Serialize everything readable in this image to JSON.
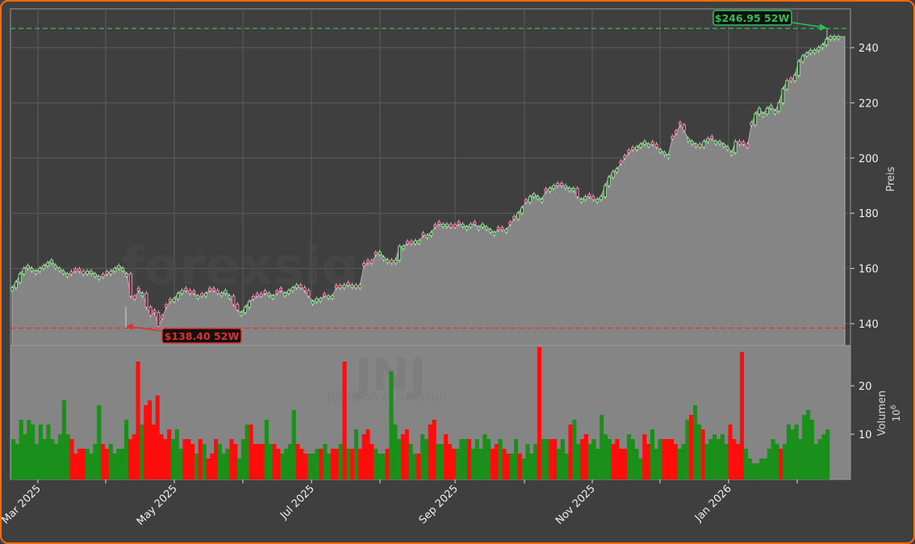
{
  "chart_data": {
    "type": "candlestick",
    "ticker": "JNJ",
    "company": "Johnson & Johnson",
    "watermark": "forexsignale.trade",
    "ylabel_price": "Preis",
    "ylabel_volume": "Volumen",
    "volume_unit": "10^6",
    "price_ticks": [
      140,
      160,
      180,
      200,
      220,
      240
    ],
    "volume_ticks": [
      10,
      20
    ],
    "price_ylim": [
      132.5,
      254.5
    ],
    "volume_ylim": [
      2.7,
      28.5
    ],
    "x_ticks": [
      "Mar 2025",
      "May 2025",
      "Jul 2025",
      "Sep 2025",
      "Nov 2025",
      "Jan 2026"
    ],
    "high_52w": {
      "value": 246.95,
      "label": "$246.95 52W",
      "color": "#2fbf5a"
    },
    "low_52w": {
      "value": 138.4,
      "label": "$138.40 52W",
      "color": "#e03030"
    },
    "grid": true,
    "colors": {
      "up": "#1a8f1a",
      "down": "#ff0d0d",
      "candle_up": "#7fe07f",
      "candle_down": "#ff7fa8",
      "area": "#858585",
      "background": "#3f3f3f"
    },
    "close_series": [
      153,
      155,
      158,
      160,
      161,
      160,
      159,
      160,
      161,
      162,
      163,
      161,
      160,
      159,
      158,
      158,
      159,
      159,
      158,
      159,
      159,
      158,
      157,
      157,
      158,
      159,
      160,
      161,
      160,
      158,
      150,
      149,
      152,
      151,
      146,
      143,
      144,
      139,
      142,
      146,
      148,
      149,
      151,
      152,
      152,
      151,
      151,
      150,
      150,
      151,
      152,
      152,
      151,
      151,
      152,
      150,
      147,
      145,
      144,
      146,
      148,
      149,
      150,
      150,
      151,
      151,
      150,
      151,
      152,
      151,
      152,
      153,
      154,
      153,
      152,
      150,
      148,
      149,
      149,
      150,
      150,
      150,
      153,
      153,
      154,
      154,
      154,
      153,
      154,
      161,
      162,
      162,
      165,
      166,
      164,
      163,
      162,
      163,
      168,
      168,
      169,
      169,
      170,
      170,
      172,
      172,
      173,
      175,
      176,
      176,
      176,
      175,
      175,
      176,
      176,
      175,
      176,
      176,
      175,
      176,
      175,
      174,
      173,
      174,
      174,
      174,
      176,
      178,
      180,
      182,
      184,
      186,
      187,
      186,
      185,
      188,
      189,
      190,
      190,
      190,
      190,
      189,
      189,
      186,
      185,
      186,
      186,
      185,
      185,
      186,
      190,
      193,
      195,
      196,
      198,
      200,
      202,
      203,
      204,
      205,
      206,
      205,
      205,
      204,
      203,
      202,
      201,
      207,
      209,
      212,
      210,
      207,
      206,
      205,
      204,
      206,
      207,
      207,
      206,
      206,
      205,
      204,
      202,
      206,
      205,
      205,
      204,
      212,
      216,
      218,
      216,
      218,
      219,
      217,
      220,
      225,
      228,
      228,
      230,
      235,
      237,
      238,
      239,
      239,
      240,
      241,
      243,
      244,
      244,
      244
    ],
    "volume_series": [
      9,
      8,
      13,
      10,
      13,
      12,
      8,
      12,
      9,
      12,
      9,
      8,
      10,
      17,
      10,
      9,
      6,
      7,
      7,
      7,
      6,
      8,
      16,
      8,
      7,
      8,
      6,
      7,
      7,
      13,
      9,
      10,
      25,
      12,
      16,
      17,
      12,
      18,
      10,
      9,
      11,
      9,
      11,
      7,
      9,
      9,
      8,
      6,
      9,
      8,
      5,
      6,
      9,
      8,
      6,
      7,
      9,
      8,
      5,
      9,
      12,
      12,
      8,
      8,
      8,
      13,
      8,
      8,
      7,
      6,
      7,
      8,
      15,
      8,
      7,
      6,
      6,
      6,
      7,
      7,
      8,
      6,
      7,
      7,
      8,
      25,
      7,
      7,
      11,
      7,
      10,
      11,
      8,
      7,
      6,
      6,
      7,
      23,
      12,
      9,
      10,
      11,
      8,
      6,
      6,
      10,
      9,
      12,
      13,
      8,
      8,
      10,
      8,
      7,
      7,
      9,
      9,
      9,
      7,
      9,
      7,
      10,
      9,
      7,
      8,
      9,
      7,
      6,
      6,
      9,
      6,
      5,
      8,
      6,
      8,
      28,
      9,
      9,
      9,
      9,
      7,
      9,
      6,
      12,
      13,
      8,
      9,
      10,
      8,
      9,
      7,
      14,
      10,
      9,
      8,
      9,
      7,
      7,
      10,
      9,
      7,
      5,
      10,
      8,
      11,
      7,
      9,
      9,
      9,
      9,
      8,
      7,
      8,
      13,
      14,
      16,
      12,
      11,
      8,
      9,
      10,
      9,
      10,
      8,
      12,
      9,
      8,
      27,
      7,
      5,
      4,
      4,
      5,
      5,
      7,
      9,
      8,
      7,
      8,
      12,
      11,
      12,
      9,
      14,
      15,
      13,
      8,
      9,
      10,
      11
    ],
    "direction_series": "uuuuuuuuuuuuuuudddduuuudduuuuuddduddddddduuudddududdduuudduuudddduudduuuuddduuuduuddudududddduuuduuudduuduudduuddduuuduuuuuddudduuduuuuduudduuuduudduuuuuudddduuuudduuudddduuuduuduuuuuudddduuuuuuuuuduuuuuu"
  },
  "panels": {
    "price": {
      "label": "Preis"
    },
    "volume": {
      "label": "Volumen",
      "exponent_base": "10",
      "exponent": "6"
    }
  },
  "annotations": {
    "high": "$246.95 52W",
    "low": "$138.40 52W"
  },
  "watermarks": {
    "site": "forexsignale.trade",
    "ticker": "JNJ",
    "company": "Johnson & Johnson"
  }
}
